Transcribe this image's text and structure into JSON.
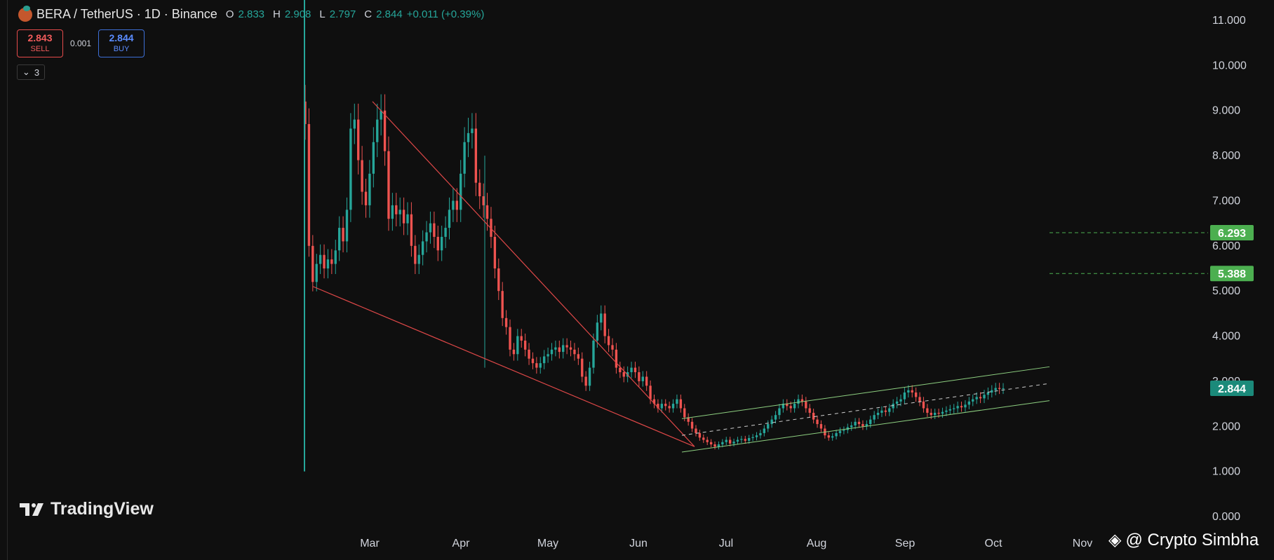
{
  "header": {
    "title": "BERA / TetherUS · 1D · Binance",
    "ohlc": [
      {
        "label": "O",
        "value": "2.833"
      },
      {
        "label": "H",
        "value": "2.908"
      },
      {
        "label": "L",
        "value": "2.797"
      },
      {
        "label": "C",
        "value": "2.844"
      }
    ],
    "change": "+0.011 (+0.39%)"
  },
  "trade": {
    "sell_price": "2.843",
    "sell_label": "SELL",
    "spread": "0.001",
    "buy_price": "2.844",
    "buy_label": "BUY"
  },
  "indicators_toggle": "3",
  "watermark": "TradingView",
  "credit": "@ Crypto Simbha",
  "colors": {
    "up": "#26a69a",
    "down": "#ef5350",
    "trend": "#e04848",
    "channel": "#8ed081",
    "level": "#4caf50",
    "bg": "#0f0f0f"
  },
  "chart_data": {
    "type": "candlestick",
    "pair": "BERA/USDT",
    "timeframe": "1D",
    "x_ticks": [
      "Mar",
      "Apr",
      "May",
      "Jun",
      "Jul",
      "Aug",
      "Sep",
      "Oct",
      "Nov"
    ],
    "y_ticks": [
      "11.000",
      "10.000",
      "9.000",
      "8.000",
      "7.000",
      "6.000",
      "5.000",
      "4.000",
      "3.000",
      "2.000",
      "1.000",
      "0.000"
    ],
    "ylim": [
      0,
      11.2
    ],
    "price_labels": [
      {
        "value": "6.293",
        "type": "horizontal-level"
      },
      {
        "value": "5.388",
        "type": "horizontal-level"
      },
      {
        "value": "2.844",
        "type": "last-price"
      }
    ],
    "series_close": [
      8.7,
      6.0,
      5.2,
      5.6,
      5.8,
      5.5,
      5.7,
      5.6,
      5.9,
      6.4,
      6.1,
      6.8,
      8.6,
      8.8,
      7.9,
      7.2,
      6.9,
      7.6,
      8.3,
      8.8,
      9.0,
      8.1,
      6.6,
      6.9,
      6.7,
      6.8,
      6.5,
      6.7,
      6.0,
      5.6,
      5.8,
      6.1,
      6.3,
      6.5,
      6.2,
      5.9,
      6.2,
      6.4,
      6.8,
      7.0,
      6.8,
      7.6,
      8.3,
      8.5,
      8.6,
      7.4,
      7.1,
      6.9,
      6.6,
      6.2,
      5.5,
      5.0,
      4.4,
      4.2,
      3.7,
      3.6,
      4.0,
      3.9,
      3.7,
      3.5,
      3.4,
      3.3,
      3.4,
      3.55,
      3.6,
      3.7,
      3.75,
      3.65,
      3.8,
      3.75,
      3.7,
      3.6,
      3.5,
      3.1,
      2.9,
      3.3,
      3.9,
      4.3,
      4.5,
      4.0,
      3.8,
      3.7,
      3.3,
      3.2,
      3.1,
      3.2,
      3.3,
      3.2,
      3.0,
      3.1,
      2.9,
      2.6,
      2.5,
      2.4,
      2.5,
      2.45,
      2.4,
      2.5,
      2.6,
      2.4,
      2.2,
      2.1,
      1.95,
      1.85,
      1.75,
      1.7,
      1.65,
      1.6,
      1.55,
      1.6,
      1.65,
      1.7,
      1.62,
      1.66,
      1.7,
      1.72,
      1.68,
      1.74,
      1.76,
      1.8,
      1.85,
      1.95,
      2.05,
      2.15,
      2.25,
      2.4,
      2.5,
      2.45,
      2.4,
      2.5,
      2.6,
      2.55,
      2.4,
      2.3,
      2.15,
      2.05,
      1.95,
      1.8,
      1.75,
      1.78,
      1.85,
      1.9,
      1.92,
      1.98,
      2.02,
      2.1,
      2.05,
      2.0,
      2.05,
      2.15,
      2.25,
      2.3,
      2.35,
      2.32,
      2.4,
      2.5,
      2.55,
      2.6,
      2.75,
      2.8,
      2.75,
      2.65,
      2.55,
      2.4,
      2.3,
      2.25,
      2.3,
      2.28,
      2.32,
      2.35,
      2.38,
      2.4,
      2.45,
      2.42,
      2.48,
      2.55,
      2.6,
      2.65,
      2.62,
      2.7,
      2.75,
      2.8,
      2.85,
      2.83,
      2.844
    ]
  }
}
